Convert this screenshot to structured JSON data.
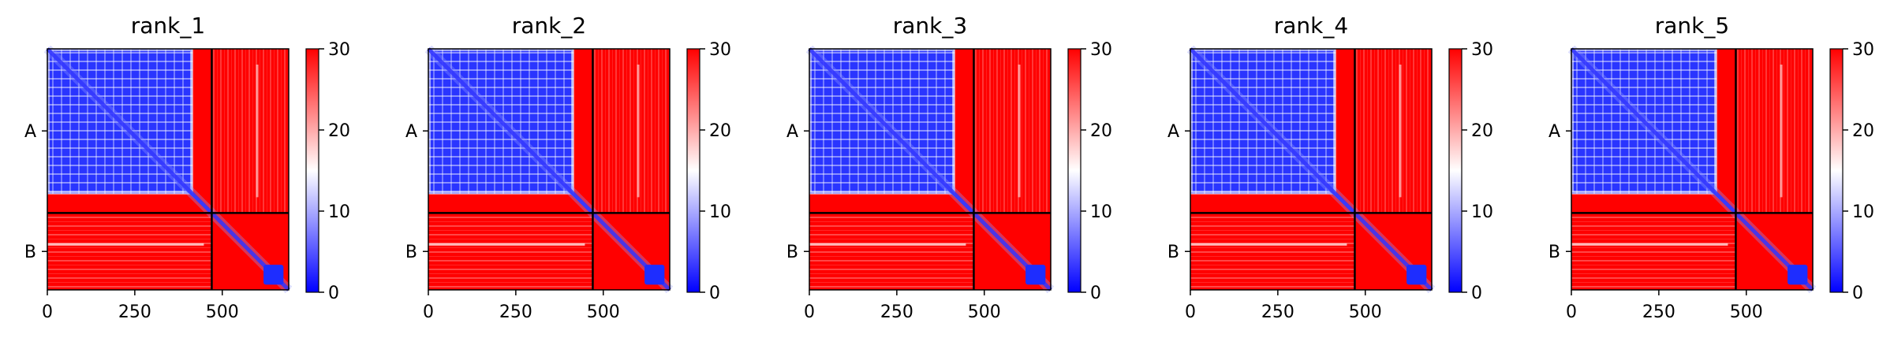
{
  "chart_data": [
    {
      "type": "heatmap",
      "title": "rank_1",
      "xlim": [
        0,
        690
      ],
      "x_ticks": [
        0,
        250,
        500
      ],
      "y_ticks": [
        "A",
        "B"
      ],
      "chains": [
        {
          "name": "A",
          "start": 0,
          "end": 470
        },
        {
          "name": "B",
          "start": 470,
          "end": 690
        }
      ],
      "colorbar": {
        "min": 0,
        "max": 30,
        "ticks": [
          0,
          10,
          20,
          30
        ],
        "colors": [
          "#0000ff",
          "#ffffff",
          "#ff0000"
        ]
      }
    },
    {
      "type": "heatmap",
      "title": "rank_2",
      "xlim": [
        0,
        690
      ],
      "x_ticks": [
        0,
        250,
        500
      ],
      "y_ticks": [
        "A",
        "B"
      ],
      "chains": [
        {
          "name": "A",
          "start": 0,
          "end": 470
        },
        {
          "name": "B",
          "start": 470,
          "end": 690
        }
      ],
      "colorbar": {
        "min": 0,
        "max": 30,
        "ticks": [
          0,
          10,
          20,
          30
        ],
        "colors": [
          "#0000ff",
          "#ffffff",
          "#ff0000"
        ]
      }
    },
    {
      "type": "heatmap",
      "title": "rank_3",
      "xlim": [
        0,
        690
      ],
      "x_ticks": [
        0,
        250,
        500
      ],
      "y_ticks": [
        "A",
        "B"
      ],
      "chains": [
        {
          "name": "A",
          "start": 0,
          "end": 470
        },
        {
          "name": "B",
          "start": 470,
          "end": 690
        }
      ],
      "colorbar": {
        "min": 0,
        "max": 30,
        "ticks": [
          0,
          10,
          20,
          30
        ],
        "colors": [
          "#0000ff",
          "#ffffff",
          "#ff0000"
        ]
      }
    },
    {
      "type": "heatmap",
      "title": "rank_4",
      "xlim": [
        0,
        690
      ],
      "x_ticks": [
        0,
        250,
        500
      ],
      "y_ticks": [
        "A",
        "B"
      ],
      "chains": [
        {
          "name": "A",
          "start": 0,
          "end": 470
        },
        {
          "name": "B",
          "start": 470,
          "end": 690
        }
      ],
      "colorbar": {
        "min": 0,
        "max": 30,
        "ticks": [
          0,
          10,
          20,
          30
        ],
        "colors": [
          "#0000ff",
          "#ffffff",
          "#ff0000"
        ]
      }
    },
    {
      "type": "heatmap",
      "title": "rank_5",
      "xlim": [
        0,
        690
      ],
      "x_ticks": [
        0,
        250,
        500
      ],
      "y_ticks": [
        "A",
        "B"
      ],
      "chains": [
        {
          "name": "A",
          "start": 0,
          "end": 470
        },
        {
          "name": "B",
          "start": 470,
          "end": 690
        }
      ],
      "colorbar": {
        "min": 0,
        "max": 30,
        "ticks": [
          0,
          10,
          20,
          30
        ],
        "colors": [
          "#0000ff",
          "#ffffff",
          "#ff0000"
        ]
      }
    }
  ]
}
